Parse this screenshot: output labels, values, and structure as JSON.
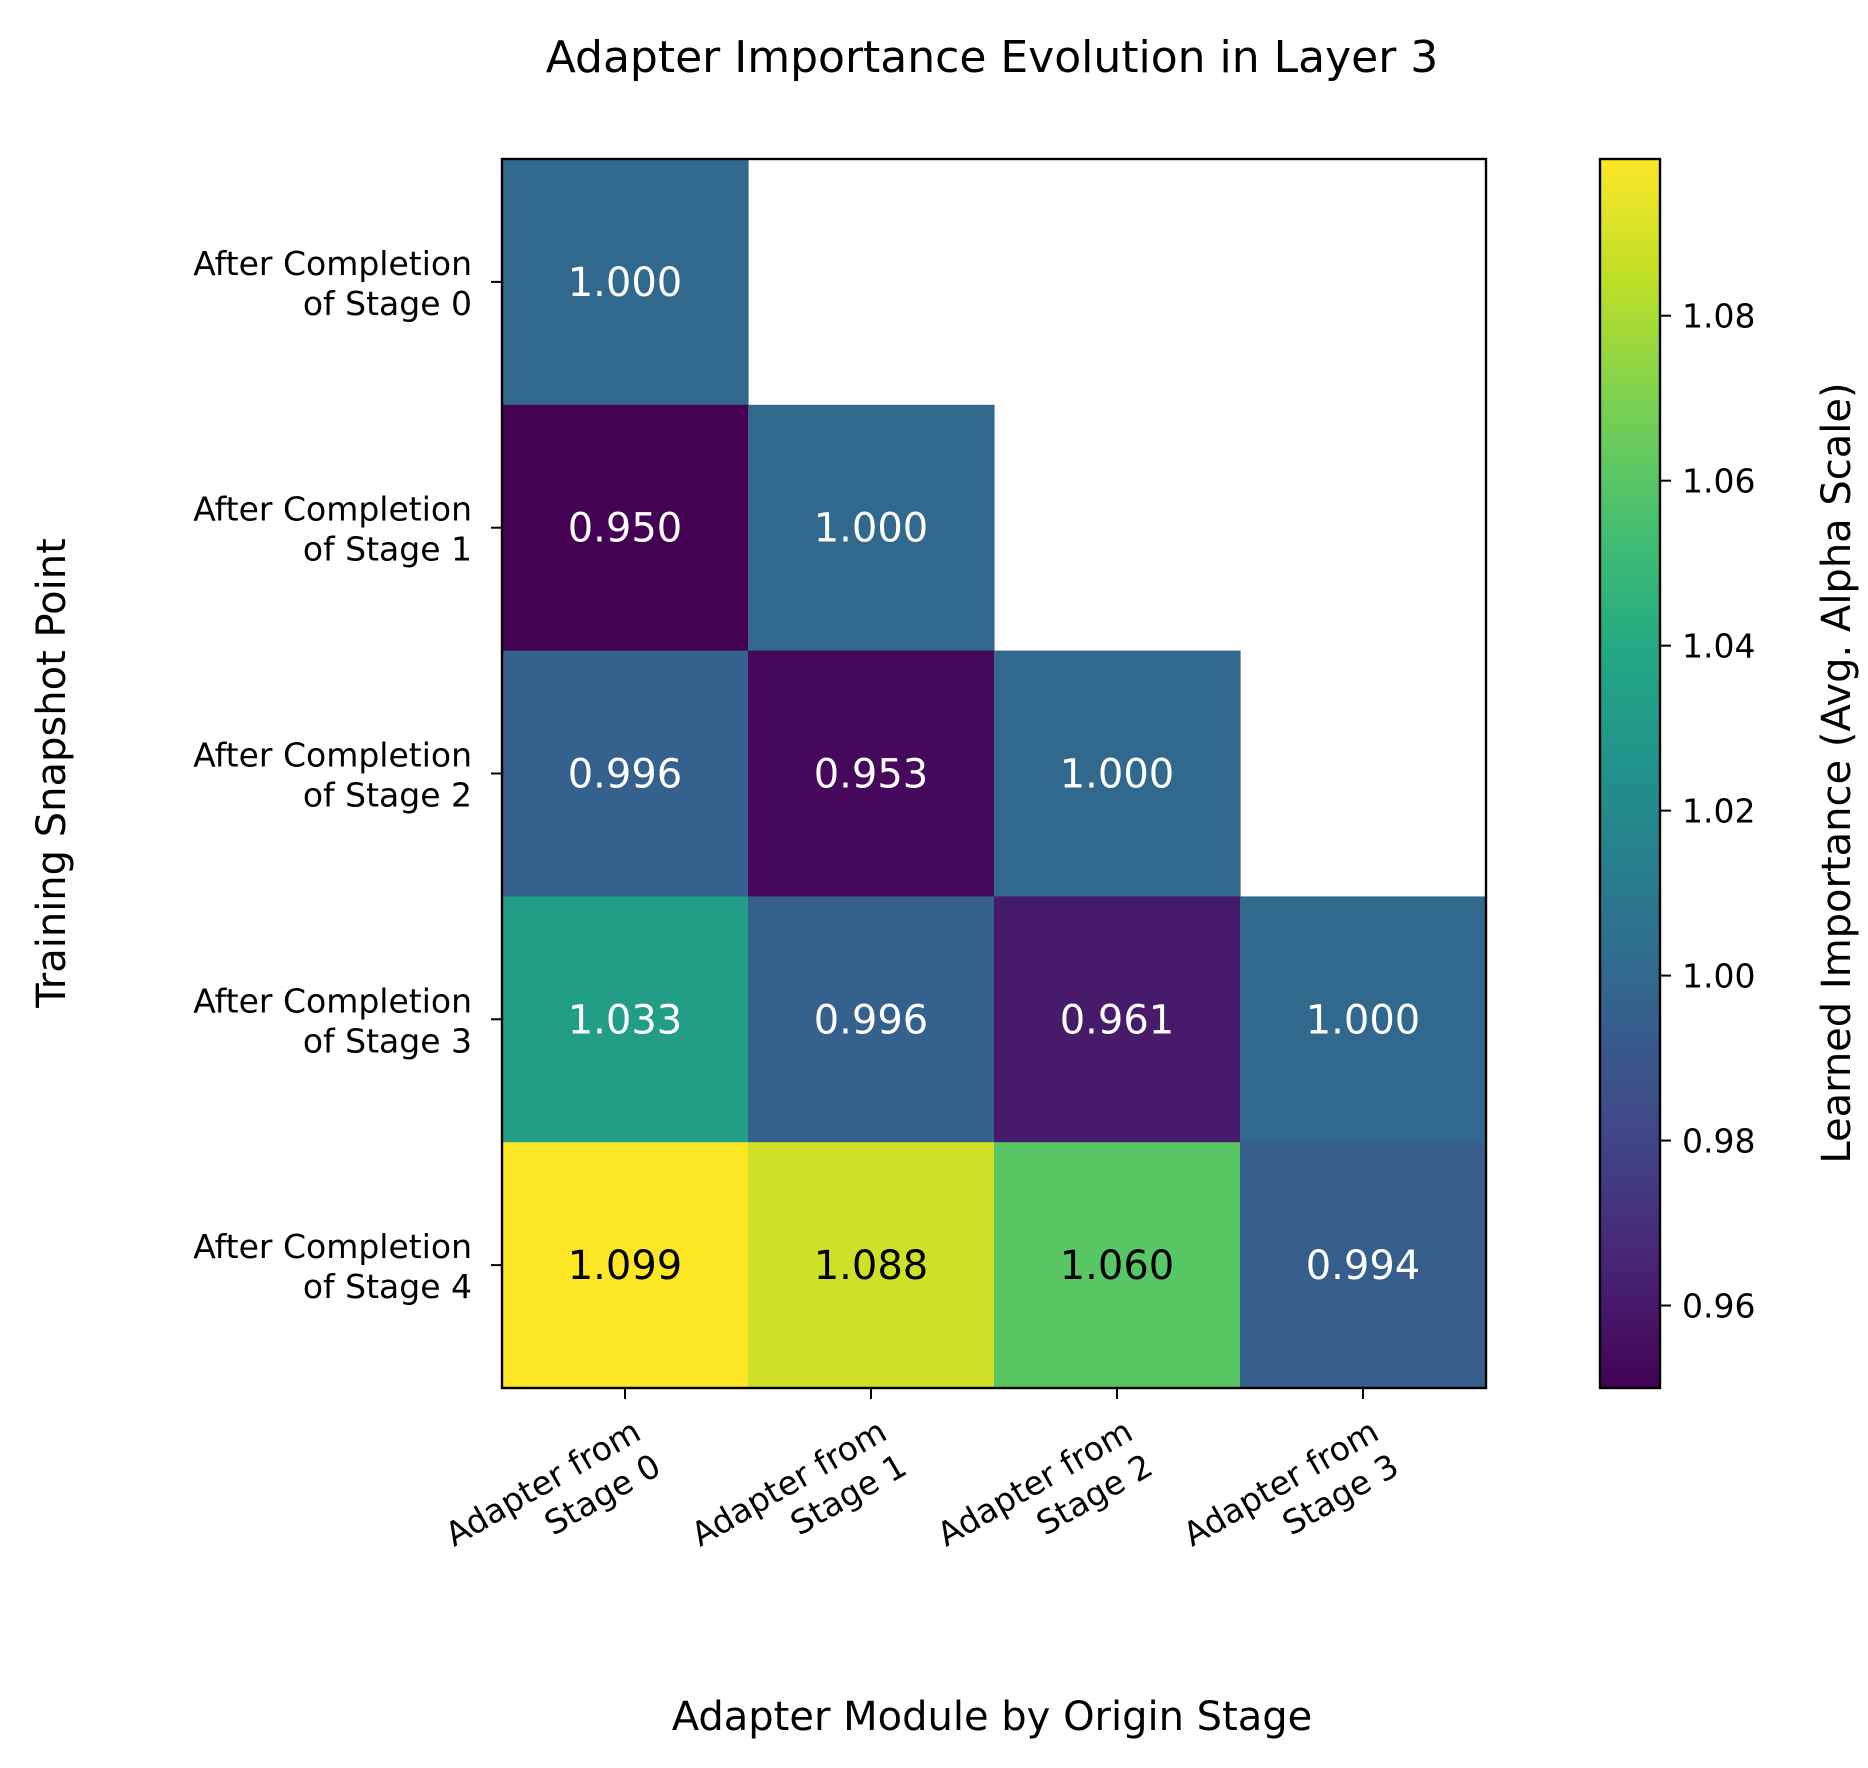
{
  "chart_data": {
    "type": "heatmap",
    "title": "Adapter Importance Evolution in Layer 3",
    "xlabel": "Adapter Module by Origin Stage",
    "ylabel": "Training Snapshot Point",
    "x_categories": [
      [
        "Adapter from",
        "Stage 0"
      ],
      [
        "Adapter from",
        "Stage 1"
      ],
      [
        "Adapter from",
        "Stage 2"
      ],
      [
        "Adapter from",
        "Stage 3"
      ]
    ],
    "y_categories": [
      [
        "After Completion",
        "of Stage 0"
      ],
      [
        "After Completion",
        "of Stage 1"
      ],
      [
        "After Completion",
        "of Stage 2"
      ],
      [
        "After Completion",
        "of Stage 3"
      ],
      [
        "After Completion",
        "of Stage 4"
      ]
    ],
    "values": [
      [
        1.0,
        null,
        null,
        null
      ],
      [
        0.95,
        1.0,
        null,
        null
      ],
      [
        0.996,
        0.953,
        1.0,
        null
      ],
      [
        1.033,
        0.996,
        0.961,
        1.0
      ],
      [
        1.099,
        1.088,
        1.06,
        0.994
      ]
    ],
    "value_labels": [
      [
        "1.000",
        "",
        "",
        ""
      ],
      [
        "0.950",
        "1.000",
        "",
        ""
      ],
      [
        "0.996",
        "0.953",
        "1.000",
        ""
      ],
      [
        "1.033",
        "0.996",
        "0.961",
        "1.000"
      ],
      [
        "1.099",
        "1.088",
        "1.060",
        "0.994"
      ]
    ],
    "colormap": "viridis",
    "color_range": [
      0.95,
      1.099
    ],
    "colorbar": {
      "label": "Learned Importance (Avg. Alpha Scale)",
      "ticks": [
        0.96,
        0.98,
        1.0,
        1.02,
        1.04,
        1.06,
        1.08
      ],
      "tick_labels": [
        "0.96",
        "0.98",
        "1.00",
        "1.02",
        "1.04",
        "1.06",
        "1.08"
      ]
    },
    "grid": false
  }
}
